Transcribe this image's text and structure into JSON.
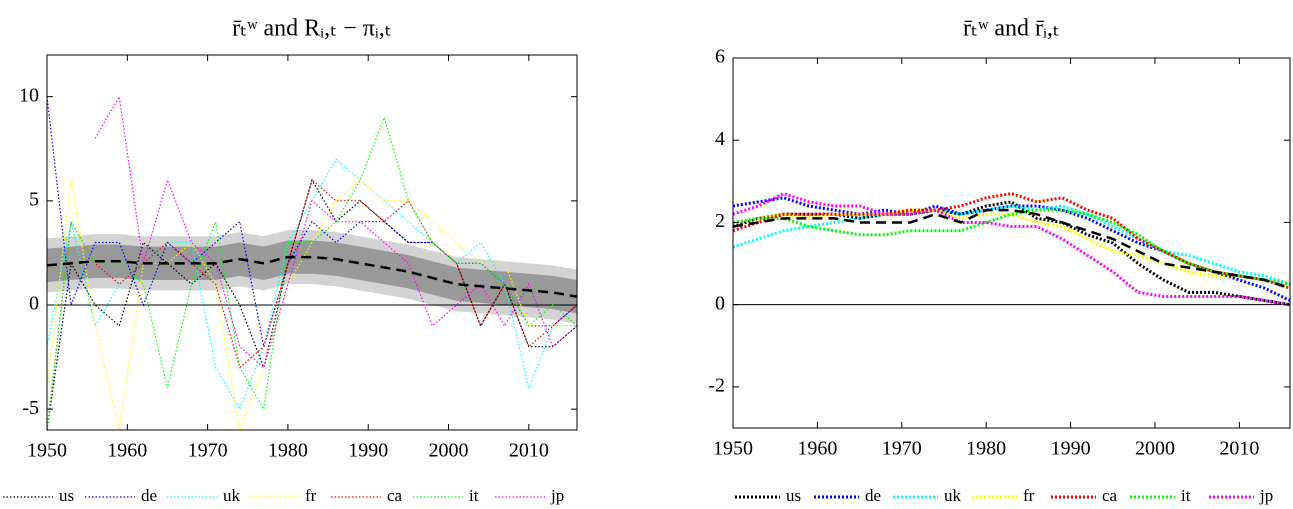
{
  "chart_data": [
    {
      "type": "line",
      "title": "r̄ₜʷ and Rᵢ,ₜ − πᵢ,ₜ",
      "x": [
        1950,
        1953,
        1956,
        1959,
        1962,
        1965,
        1968,
        1971,
        1974,
        1977,
        1980,
        1983,
        1986,
        1989,
        1992,
        1995,
        1998,
        2001,
        2004,
        2007,
        2010,
        2013,
        2016
      ],
      "xlim": [
        1950,
        2016
      ],
      "xticks": [
        1950,
        1960,
        1970,
        1980,
        1990,
        2000,
        2010
      ],
      "ylim": [
        -6,
        12
      ],
      "yticks": [
        -5,
        0,
        5,
        10
      ],
      "hline": 0,
      "legend": "bottom",
      "bands": [
        {
          "color": "#d3d3d3",
          "lower": [
            0.6,
            0.7,
            0.8,
            0.8,
            0.7,
            0.7,
            0.7,
            0.7,
            0.9,
            0.7,
            1.0,
            1.0,
            0.9,
            0.7,
            0.5,
            0.3,
            0.0,
            -0.3,
            -0.4,
            -0.5,
            -0.6,
            -0.7,
            -0.9
          ],
          "upper": [
            3.2,
            3.3,
            3.4,
            3.4,
            3.3,
            3.3,
            3.3,
            3.3,
            3.5,
            3.3,
            3.6,
            3.6,
            3.5,
            3.3,
            3.1,
            2.9,
            2.6,
            2.3,
            2.2,
            2.1,
            2.0,
            1.9,
            1.7
          ]
        },
        {
          "color": "#999999",
          "lower": [
            1.1,
            1.2,
            1.3,
            1.3,
            1.2,
            1.2,
            1.2,
            1.2,
            1.4,
            1.2,
            1.5,
            1.5,
            1.4,
            1.2,
            1.0,
            0.8,
            0.5,
            0.2,
            0.1,
            0.0,
            -0.1,
            -0.2,
            -0.4
          ],
          "upper": [
            2.7,
            2.8,
            2.9,
            2.9,
            2.8,
            2.8,
            2.8,
            2.8,
            3.0,
            2.8,
            3.1,
            3.1,
            3.0,
            2.8,
            2.6,
            2.4,
            2.1,
            1.8,
            1.7,
            1.6,
            1.5,
            1.4,
            1.2
          ]
        }
      ],
      "series": [
        {
          "name": "us",
          "color": "#000000",
          "values": [
            -6,
            2,
            0,
            -1,
            3,
            2,
            1,
            2,
            0,
            -3,
            2,
            6,
            4,
            5,
            4,
            3,
            3,
            2,
            -1,
            1,
            -2,
            -2,
            -1
          ]
        },
        {
          "name": "de",
          "color": "#0000ff",
          "values": [
            10,
            0,
            3,
            3,
            0,
            3,
            2,
            3,
            4,
            -2,
            2,
            4,
            3,
            4,
            4,
            3,
            3,
            2,
            2,
            1,
            -1,
            -1,
            0
          ]
        },
        {
          "name": "uk",
          "color": "#00ffff",
          "values": [
            -2,
            4,
            -1,
            1,
            2,
            3,
            3,
            -3,
            -5,
            -2,
            3,
            5,
            7,
            6,
            5,
            4,
            3,
            2,
            3,
            1,
            -4,
            -1,
            -1
          ]
        },
        {
          "name": "fr",
          "color": "#ffff00",
          "values": [
            -4,
            6,
            -1,
            -6,
            2,
            2,
            3,
            1,
            -6,
            -3,
            1,
            3,
            5,
            6,
            5,
            5,
            4,
            3,
            2,
            2,
            -1,
            -1,
            -1
          ]
        },
        {
          "name": "ca",
          "color": "#ff0000",
          "values": [
            -6,
            4,
            2,
            1,
            2,
            3,
            2,
            1,
            -3,
            -2,
            2,
            6,
            5,
            5,
            4,
            5,
            3,
            2,
            -1,
            1,
            -2,
            -1,
            0
          ]
        },
        {
          "name": "it",
          "color": "#00ff00",
          "values": [
            -6,
            4,
            2,
            2,
            1,
            -4,
            1,
            4,
            -3,
            -5,
            3,
            3,
            4,
            6,
            9,
            5,
            3,
            2,
            2,
            1,
            -1,
            0,
            -1
          ]
        },
        {
          "name": "jp",
          "color": "#ff00ff",
          "values": [
            null,
            null,
            8,
            10,
            2,
            6,
            3,
            2,
            -2,
            -3,
            1,
            5,
            4,
            4,
            3,
            2,
            -1,
            0,
            1,
            -1,
            1,
            -2,
            -1
          ]
        }
      ],
      "trend": {
        "color": "#000000",
        "values": [
          1.9,
          2.0,
          2.1,
          2.1,
          2.0,
          2.0,
          2.0,
          2.0,
          2.2,
          2.0,
          2.3,
          2.3,
          2.2,
          2.0,
          1.8,
          1.6,
          1.3,
          1.0,
          0.9,
          0.8,
          0.7,
          0.6,
          0.4
        ]
      }
    },
    {
      "type": "line",
      "title": "r̄ₜʷ and r̄ᵢ,ₜ",
      "x": [
        1950,
        1953,
        1956,
        1959,
        1962,
        1965,
        1968,
        1971,
        1974,
        1977,
        1980,
        1983,
        1986,
        1989,
        1992,
        1995,
        1998,
        2001,
        2004,
        2007,
        2010,
        2013,
        2016
      ],
      "xlim": [
        1950,
        2016
      ],
      "xticks": [
        1950,
        1960,
        1970,
        1980,
        1990,
        2000,
        2010
      ],
      "ylim": [
        -3,
        6
      ],
      "yticks": [
        -2,
        0,
        2,
        4,
        6
      ],
      "hline": 0,
      "legend": "bottom",
      "series": [
        {
          "name": "us",
          "color": "#000000",
          "values": [
            1.9,
            2.1,
            2.2,
            2.2,
            2.2,
            2.1,
            2.2,
            2.2,
            2.3,
            2.2,
            2.4,
            2.5,
            2.1,
            2.0,
            1.7,
            1.5,
            1.0,
            0.6,
            0.3,
            0.3,
            0.2,
            0.1,
            0.0
          ]
        },
        {
          "name": "de",
          "color": "#0000ff",
          "values": [
            2.4,
            2.5,
            2.6,
            2.4,
            2.3,
            2.2,
            2.3,
            2.2,
            2.4,
            2.2,
            2.3,
            2.4,
            2.4,
            2.3,
            2.1,
            1.8,
            1.5,
            1.3,
            1.0,
            0.8,
            0.6,
            0.4,
            0.1
          ]
        },
        {
          "name": "uk",
          "color": "#00ffff",
          "values": [
            1.4,
            1.6,
            1.8,
            1.9,
            2.0,
            2.1,
            2.2,
            2.2,
            2.3,
            2.2,
            2.3,
            2.4,
            2.3,
            2.4,
            2.2,
            1.9,
            1.6,
            1.3,
            1.2,
            1.0,
            0.8,
            0.7,
            0.5
          ]
        },
        {
          "name": "fr",
          "color": "#ffff00",
          "values": [
            2.0,
            2.1,
            2.2,
            2.1,
            2.2,
            2.2,
            2.2,
            2.3,
            2.3,
            2.1,
            2.2,
            2.2,
            2.0,
            1.9,
            1.6,
            1.3,
            1.2,
            1.0,
            0.8,
            0.7,
            0.7,
            0.6,
            0.4
          ]
        },
        {
          "name": "ca",
          "color": "#ff0000",
          "values": [
            1.8,
            2.0,
            2.2,
            2.2,
            2.2,
            2.2,
            2.2,
            2.3,
            2.3,
            2.4,
            2.6,
            2.7,
            2.5,
            2.6,
            2.3,
            2.1,
            1.6,
            1.3,
            1.0,
            0.8,
            0.7,
            0.6,
            0.4
          ]
        },
        {
          "name": "it",
          "color": "#00ff00",
          "values": [
            2.0,
            2.1,
            2.1,
            1.9,
            1.8,
            1.7,
            1.7,
            1.8,
            1.8,
            1.8,
            2.0,
            2.2,
            2.3,
            2.3,
            2.2,
            2.0,
            1.7,
            1.3,
            1.0,
            0.8,
            0.7,
            0.6,
            0.5
          ]
        },
        {
          "name": "jp",
          "color": "#ff00ff",
          "values": [
            2.2,
            2.4,
            2.7,
            2.5,
            2.4,
            2.4,
            2.2,
            2.2,
            2.3,
            2.0,
            2.0,
            1.9,
            1.9,
            1.6,
            1.2,
            0.8,
            0.3,
            0.2,
            0.2,
            0.2,
            0.2,
            0.1,
            0.0
          ]
        }
      ],
      "trend": {
        "color": "#000000",
        "values": [
          1.9,
          2.0,
          2.1,
          2.1,
          2.1,
          2.0,
          2.0,
          2.0,
          2.2,
          2.0,
          2.3,
          2.3,
          2.2,
          2.0,
          1.8,
          1.6,
          1.3,
          1.0,
          0.9,
          0.8,
          0.7,
          0.6,
          0.4
        ]
      }
    }
  ]
}
